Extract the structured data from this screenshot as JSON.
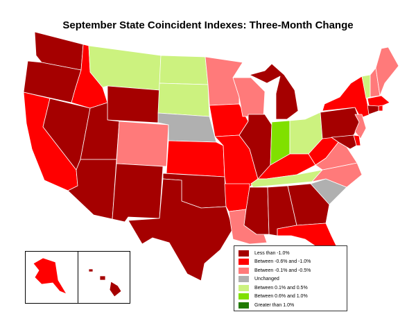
{
  "title": "September State Coincident Indexes: Three-Month Change",
  "colors": {
    "lt_neg1": "#a50000",
    "neg06_neg1": "#ff0000",
    "neg01_neg05": "#ff7a7a",
    "unchanged": "#b0b0b0",
    "pos01_05": "#ccf27f",
    "pos06_1": "#80e000",
    "gt_1": "#207a00"
  },
  "legend": [
    {
      "key": "lt_neg1",
      "label": "Less than -1.0%"
    },
    {
      "key": "neg06_neg1",
      "label": "Between -0.6% and -1.0%"
    },
    {
      "key": "neg01_neg05",
      "label": "Between -0.1% and -0.5%"
    },
    {
      "key": "unchanged",
      "label": "Unchanged"
    },
    {
      "key": "pos01_05",
      "label": "Between 0.1% and 0.5%"
    },
    {
      "key": "pos06_1",
      "label": "Between 0.6% and 1.0%"
    },
    {
      "key": "gt_1",
      "label": "Greater than 1.0%"
    }
  ],
  "states": {
    "WA": "lt_neg1",
    "OR": "lt_neg1",
    "CA": "neg06_neg1",
    "NV": "lt_neg1",
    "ID": "neg06_neg1",
    "MT": "pos01_05",
    "WY": "lt_neg1",
    "UT": "lt_neg1",
    "AZ": "lt_neg1",
    "CO": "neg01_neg05",
    "NM": "lt_neg1",
    "ND": "pos01_05",
    "SD": "pos01_05",
    "NE": "unchanged",
    "KS": "neg06_neg1",
    "OK": "lt_neg1",
    "TX": "lt_neg1",
    "MN": "neg01_neg05",
    "IA": "neg06_neg1",
    "MO": "neg06_neg1",
    "AR": "neg06_neg1",
    "LA": "neg01_neg05",
    "WI": "neg01_neg05",
    "IL": "lt_neg1",
    "MI": "lt_neg1",
    "IN": "pos06_1",
    "OH": "pos01_05",
    "KY": "neg06_neg1",
    "TN": "pos01_05",
    "MS": "lt_neg1",
    "AL": "lt_neg1",
    "GA": "lt_neg1",
    "FL": "neg06_neg1",
    "SC": "unchanged",
    "NC": "neg01_neg05",
    "VA": "neg01_neg05",
    "WV": "neg06_neg1",
    "PA": "lt_neg1",
    "NY": "neg06_neg1",
    "VT": "pos01_05",
    "NH": "neg01_neg05",
    "ME": "neg01_neg05",
    "MA": "neg06_neg1",
    "RI": "neg06_neg1",
    "CT": "lt_neg1",
    "NJ": "neg01_neg05",
    "DE": "neg06_neg1",
    "MD": "lt_neg1",
    "AK": "neg06_neg1",
    "HI": "lt_neg1"
  }
}
